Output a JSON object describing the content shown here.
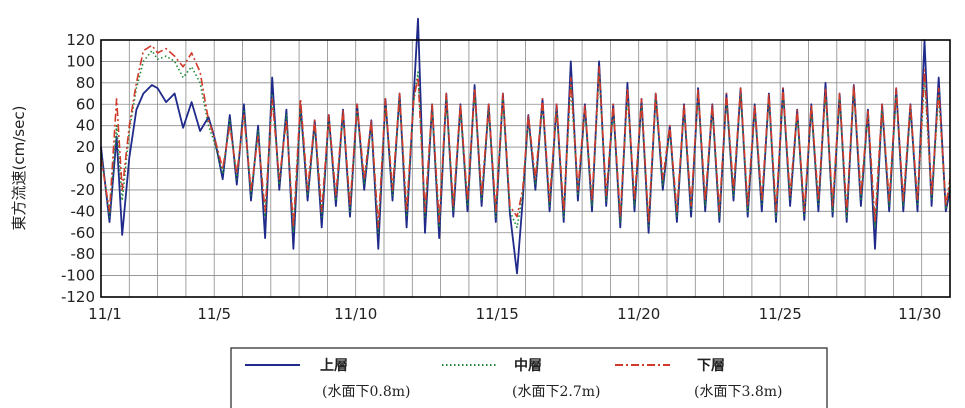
{
  "chart_data": {
    "type": "line",
    "title": "",
    "ylabel": "東方流速(cm/sec)",
    "xlabel": "",
    "ylim": [
      -120,
      120
    ],
    "yticks": [
      120,
      100,
      80,
      60,
      40,
      20,
      0,
      -20,
      -40,
      -60,
      -80,
      -100,
      -120
    ],
    "xlim": [
      1,
      31
    ],
    "xticks": [
      {
        "x": 1,
        "label": "11/1"
      },
      {
        "x": 5,
        "label": "11/5"
      },
      {
        "x": 10,
        "label": "11/10"
      },
      {
        "x": 15,
        "label": "11/15"
      },
      {
        "x": 20,
        "label": "11/20"
      },
      {
        "x": 25,
        "label": "11/25"
      },
      {
        "x": 30,
        "label": "11/30"
      }
    ],
    "grid": true,
    "legend_position": "bottom",
    "series": [
      {
        "name": "上層",
        "depth": "(水面下0.8m)",
        "color": "#1f2a8a",
        "style": "solid",
        "x": [
          1.0,
          1.3,
          1.55,
          1.75,
          2.0,
          2.25,
          2.5,
          2.8,
          3.0,
          3.3,
          3.6,
          3.9,
          4.2,
          4.5,
          4.8,
          5.0,
          5.3,
          5.55,
          5.8,
          6.05,
          6.3,
          6.55,
          6.8,
          7.05,
          7.3,
          7.55,
          7.8,
          8.05,
          8.3,
          8.55,
          8.8,
          9.05,
          9.3,
          9.55,
          9.8,
          10.05,
          10.3,
          10.55,
          10.8,
          11.05,
          11.3,
          11.55,
          11.8,
          12.05,
          12.2,
          12.45,
          12.7,
          12.95,
          13.2,
          13.45,
          13.7,
          13.95,
          14.2,
          14.45,
          14.7,
          14.95,
          15.2,
          15.45,
          15.7,
          15.9,
          16.1,
          16.35,
          16.6,
          16.85,
          17.1,
          17.35,
          17.6,
          17.85,
          18.1,
          18.35,
          18.6,
          18.85,
          19.1,
          19.35,
          19.6,
          19.85,
          20.1,
          20.35,
          20.6,
          20.85,
          21.1,
          21.35,
          21.6,
          21.85,
          22.1,
          22.35,
          22.6,
          22.85,
          23.1,
          23.35,
          23.6,
          23.85,
          24.1,
          24.35,
          24.6,
          24.85,
          25.1,
          25.35,
          25.6,
          25.85,
          26.1,
          26.35,
          26.6,
          26.85,
          27.1,
          27.35,
          27.6,
          27.85,
          28.1,
          28.35,
          28.6,
          28.85,
          29.1,
          29.35,
          29.6,
          29.85,
          30.1,
          30.35,
          30.6,
          30.85,
          31.0
        ],
        "y": [
          20,
          -50,
          30,
          -62,
          10,
          55,
          70,
          78,
          75,
          62,
          70,
          38,
          62,
          35,
          48,
          30,
          -10,
          50,
          -15,
          60,
          -30,
          40,
          -65,
          85,
          -20,
          55,
          -75,
          60,
          -30,
          45,
          -55,
          50,
          -35,
          55,
          -45,
          60,
          -20,
          45,
          -75,
          65,
          -30,
          70,
          -55,
          68,
          140,
          -60,
          60,
          -65,
          70,
          -45,
          60,
          -40,
          78,
          -35,
          60,
          -50,
          70,
          -42,
          -98,
          -30,
          50,
          -20,
          65,
          -40,
          60,
          -50,
          100,
          -30,
          60,
          -40,
          100,
          -35,
          60,
          -55,
          80,
          -40,
          65,
          -60,
          70,
          -20,
          40,
          -50,
          60,
          -45,
          75,
          -40,
          60,
          -50,
          70,
          -30,
          75,
          -45,
          60,
          -40,
          70,
          -50,
          75,
          -35,
          55,
          -48,
          60,
          -40,
          80,
          -45,
          70,
          -50,
          78,
          -35,
          55,
          -75,
          60,
          -40,
          75,
          -40,
          60,
          -40,
          120,
          -35,
          85,
          -40,
          -20
        ]
      },
      {
        "name": "中層",
        "depth": "(水面下2.7m)",
        "color": "#1e8a3a",
        "style": "dotted",
        "x": [
          1.0,
          1.3,
          1.55,
          1.75,
          2.0,
          2.25,
          2.5,
          2.8,
          3.0,
          3.3,
          3.6,
          3.9,
          4.2,
          4.5,
          4.8,
          5.0,
          5.3,
          5.55,
          5.8,
          6.05,
          6.3,
          6.55,
          6.8,
          7.05,
          7.3,
          7.55,
          7.8,
          8.05,
          8.3,
          8.55,
          8.8,
          9.05,
          9.3,
          9.55,
          9.8,
          10.05,
          10.3,
          10.55,
          10.8,
          11.05,
          11.3,
          11.55,
          11.8,
          12.05,
          12.2,
          12.45,
          12.7,
          12.95,
          13.2,
          13.45,
          13.7,
          13.95,
          14.2,
          14.45,
          14.7,
          14.95,
          15.2,
          15.45,
          15.7,
          15.9,
          16.1,
          16.35,
          16.6,
          16.85,
          17.1,
          17.35,
          17.6,
          17.85,
          18.1,
          18.35,
          18.6,
          18.85,
          19.1,
          19.35,
          19.6,
          19.85,
          20.1,
          20.35,
          20.6,
          20.85,
          21.1,
          21.35,
          21.6,
          21.85,
          22.1,
          22.35,
          22.6,
          22.85,
          23.1,
          23.35,
          23.6,
          23.85,
          24.1,
          24.35,
          24.6,
          24.85,
          25.1,
          25.35,
          25.6,
          25.85,
          26.1,
          26.35,
          26.6,
          26.85,
          27.1,
          27.35,
          27.6,
          27.85,
          28.1,
          28.35,
          28.6,
          28.85,
          29.1,
          29.35,
          29.6,
          29.85,
          30.1,
          30.35,
          30.6,
          30.85,
          31.0
        ],
        "y": [
          15,
          -45,
          40,
          -30,
          35,
          75,
          100,
          110,
          102,
          105,
          100,
          85,
          95,
          80,
          40,
          25,
          -5,
          45,
          -10,
          55,
          -25,
          35,
          -45,
          70,
          -15,
          50,
          -60,
          55,
          -25,
          40,
          -45,
          45,
          -30,
          50,
          -40,
          55,
          -15,
          40,
          -60,
          60,
          -25,
          65,
          -45,
          62,
          90,
          -45,
          55,
          -55,
          65,
          -40,
          55,
          -35,
          72,
          -30,
          55,
          -45,
          65,
          -40,
          -55,
          -25,
          45,
          -15,
          60,
          -35,
          55,
          -45,
          80,
          -25,
          55,
          -35,
          88,
          -30,
          55,
          -50,
          70,
          -35,
          60,
          -55,
          65,
          -15,
          35,
          -45,
          55,
          -40,
          70,
          -35,
          55,
          -45,
          65,
          -25,
          70,
          -40,
          55,
          -35,
          65,
          -45,
          70,
          -30,
          50,
          -45,
          55,
          -35,
          70,
          -40,
          65,
          -45,
          72,
          -30,
          50,
          -55,
          55,
          -35,
          70,
          -35,
          55,
          -35,
          85,
          -30,
          70,
          -38,
          -15
        ]
      },
      {
        "name": "下層",
        "depth": "(水面下3.8m)",
        "color": "#d03a2a",
        "style": "dashdot",
        "x": [
          1.0,
          1.3,
          1.55,
          1.75,
          2.0,
          2.25,
          2.5,
          2.8,
          3.0,
          3.3,
          3.6,
          3.9,
          4.2,
          4.5,
          4.8,
          5.0,
          5.3,
          5.55,
          5.8,
          6.05,
          6.3,
          6.55,
          6.8,
          7.05,
          7.3,
          7.55,
          7.8,
          8.05,
          8.3,
          8.55,
          8.8,
          9.05,
          9.3,
          9.55,
          9.8,
          10.05,
          10.3,
          10.55,
          10.8,
          11.05,
          11.3,
          11.55,
          11.8,
          12.05,
          12.2,
          12.45,
          12.7,
          12.95,
          13.2,
          13.45,
          13.7,
          13.95,
          14.2,
          14.45,
          14.7,
          14.95,
          15.2,
          15.45,
          15.7,
          15.9,
          16.1,
          16.35,
          16.6,
          16.85,
          17.1,
          17.35,
          17.6,
          17.85,
          18.1,
          18.35,
          18.6,
          18.85,
          19.1,
          19.35,
          19.6,
          19.85,
          20.1,
          20.35,
          20.6,
          20.85,
          21.1,
          21.35,
          21.6,
          21.85,
          22.1,
          22.35,
          22.6,
          22.85,
          23.1,
          23.35,
          23.6,
          23.85,
          24.1,
          24.35,
          24.6,
          24.85,
          25.1,
          25.35,
          25.6,
          25.85,
          26.1,
          26.35,
          26.6,
          26.85,
          27.1,
          27.35,
          27.6,
          27.85,
          28.1,
          28.35,
          28.6,
          28.85,
          29.1,
          29.35,
          29.6,
          29.85,
          30.1,
          30.35,
          30.6,
          30.85,
          31.0
        ],
        "y": [
          10,
          -40,
          65,
          -20,
          40,
          80,
          110,
          115,
          108,
          112,
          105,
          95,
          108,
          90,
          45,
          30,
          0,
          40,
          -5,
          50,
          -20,
          30,
          -40,
          65,
          -10,
          45,
          -55,
          65,
          -20,
          45,
          -40,
          50,
          -25,
          55,
          -35,
          60,
          -10,
          45,
          -55,
          65,
          -20,
          70,
          -40,
          65,
          85,
          -40,
          60,
          -50,
          70,
          -35,
          60,
          -30,
          75,
          -25,
          60,
          -40,
          70,
          -35,
          -45,
          -20,
          50,
          -10,
          65,
          -30,
          60,
          -40,
          85,
          -20,
          60,
          -30,
          95,
          -25,
          60,
          -45,
          75,
          -30,
          65,
          -50,
          70,
          -10,
          40,
          -40,
          60,
          -35,
          75,
          -30,
          60,
          -40,
          70,
          -20,
          75,
          -35,
          60,
          -30,
          70,
          -40,
          75,
          -25,
          55,
          -40,
          60,
          -30,
          75,
          -35,
          70,
          -40,
          78,
          -25,
          55,
          -50,
          60,
          -30,
          75,
          -30,
          60,
          -30,
          92,
          -25,
          75,
          -35,
          -10
        ]
      }
    ]
  }
}
